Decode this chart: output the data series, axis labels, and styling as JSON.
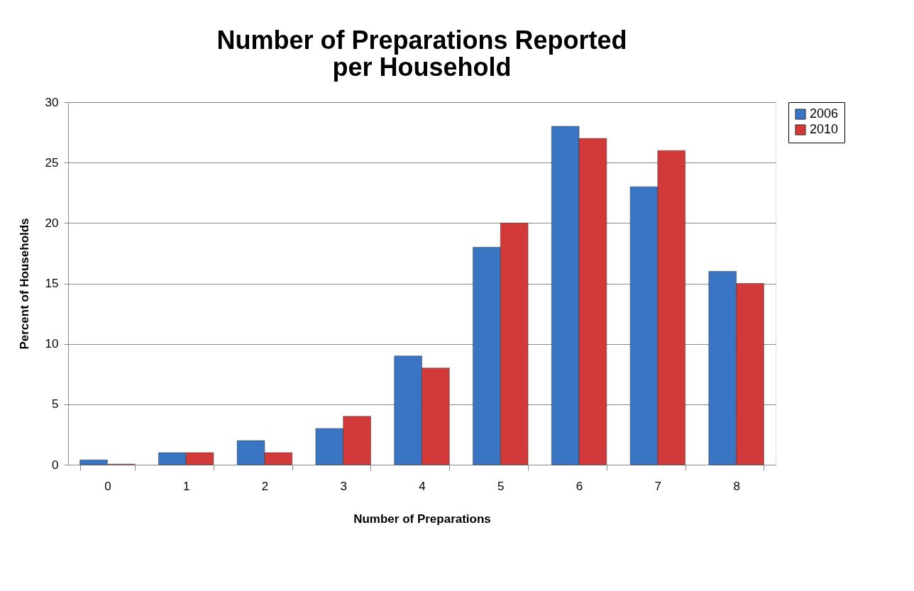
{
  "chart_data": {
    "type": "bar",
    "title": [
      "Number of Preparations Reported",
      "per Household"
    ],
    "xlabel": "Number of Preparations",
    "ylabel": "Percent of Households",
    "categories": [
      "0",
      "1",
      "2",
      "3",
      "4",
      "5",
      "6",
      "7",
      "8"
    ],
    "series": [
      {
        "name": "2006",
        "color": "#3a75c4",
        "values": [
          0.4,
          1,
          2,
          3,
          9,
          18,
          28,
          23,
          16
        ]
      },
      {
        "name": "2010",
        "color": "#d23a3a",
        "values": [
          0.05,
          1,
          1,
          4,
          8,
          20,
          27,
          26,
          15
        ]
      }
    ],
    "ylim": [
      0,
      30
    ],
    "yticks": [
      0,
      5,
      10,
      15,
      20,
      25,
      30
    ],
    "grid": "y",
    "legend": "right"
  }
}
